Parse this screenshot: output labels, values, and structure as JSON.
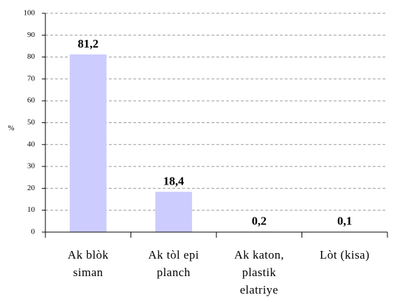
{
  "chart_data": {
    "type": "bar",
    "y_label": "%",
    "categories": [
      "Ak blòk siman",
      "Ak tòl epi planch",
      "Ak katon, plastik elatriye",
      "Lòt (kisa)"
    ],
    "values": [
      81.2,
      18.4,
      0.2,
      0.1
    ],
    "value_labels": [
      "81,2",
      "18,4",
      "0,2",
      "0,1"
    ],
    "color": "#ccccff",
    "ylim": [
      0,
      100
    ],
    "yticks": [
      0,
      10,
      20,
      30,
      40,
      50,
      60,
      70,
      80,
      90,
      100
    ],
    "grid": true
  }
}
